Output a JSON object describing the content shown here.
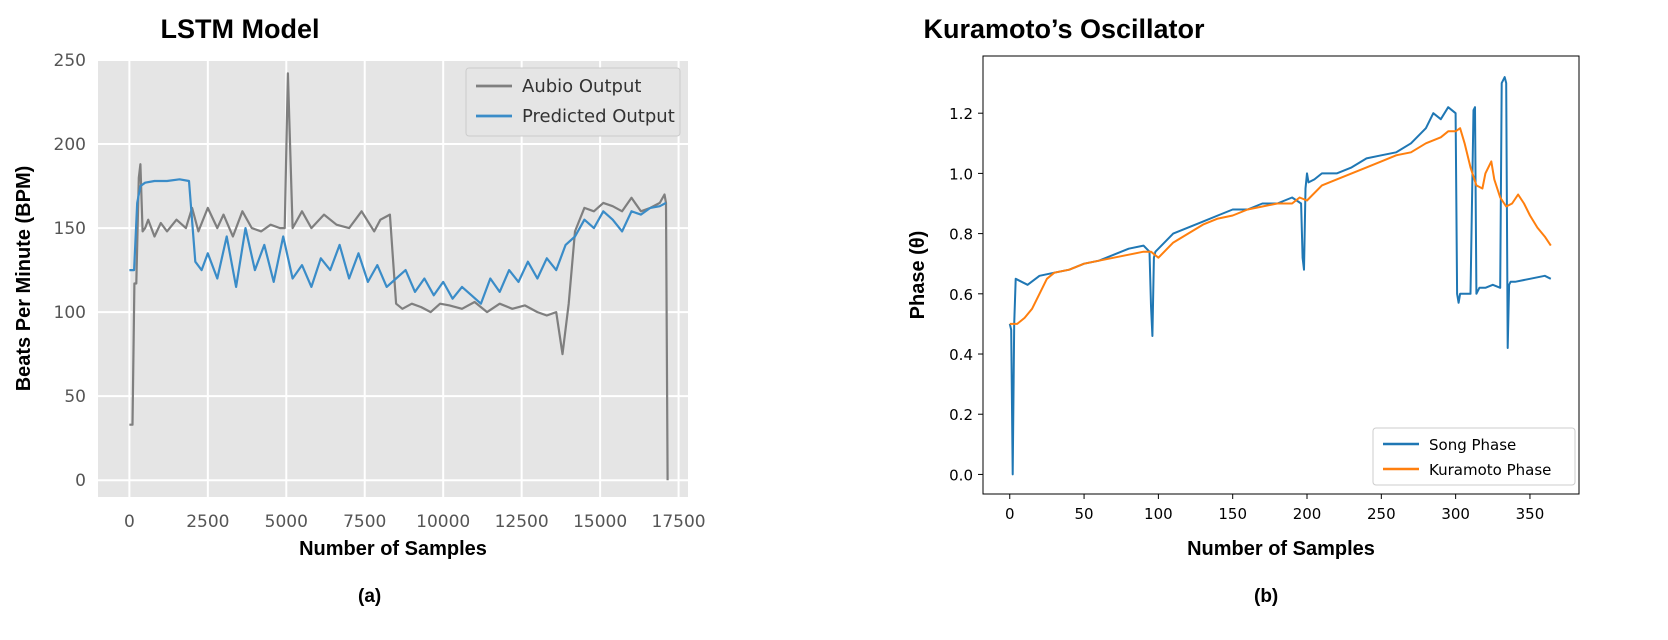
{
  "chart_data": [
    {
      "type": "line",
      "title": "LSTM Model",
      "xlabel": "Number of Samples",
      "ylabel": "Beats Per Minute (BPM)",
      "caption": "(a)",
      "xlim": [
        -1000,
        17800
      ],
      "ylim": [
        -10,
        250
      ],
      "xticks": [
        0,
        2500,
        5000,
        7500,
        10000,
        12500,
        15000,
        17500
      ],
      "yticks": [
        0,
        50,
        100,
        150,
        200,
        250
      ],
      "grid": true,
      "legend_position": "top-right",
      "colors": {
        "background": "#e5e5e5",
        "grid": "#ffffff",
        "series1": "#7f7f7f",
        "series2": "#3a8cc8"
      },
      "series": [
        {
          "name": "Aubio Output",
          "x": [
            0,
            100,
            160,
            220,
            300,
            350,
            420,
            500,
            600,
            800,
            1000,
            1200,
            1500,
            1800,
            2000,
            2200,
            2500,
            2800,
            3000,
            3300,
            3600,
            3900,
            4200,
            4500,
            4800,
            4950,
            5050,
            5200,
            5500,
            5800,
            6200,
            6600,
            7000,
            7400,
            7800,
            8000,
            8300,
            8500,
            8700,
            9000,
            9300,
            9600,
            9900,
            10200,
            10600,
            11000,
            11400,
            11800,
            12200,
            12600,
            13000,
            13300,
            13600,
            13800,
            14000,
            14200,
            14500,
            14800,
            15100,
            15400,
            15700,
            16000,
            16300,
            16600,
            16900,
            17050,
            17100,
            17150
          ],
          "values": [
            33,
            33,
            117,
            117,
            180,
            188,
            148,
            150,
            155,
            145,
            153,
            148,
            155,
            150,
            162,
            148,
            162,
            150,
            158,
            145,
            160,
            150,
            148,
            152,
            150,
            150,
            242,
            150,
            160,
            150,
            158,
            152,
            150,
            160,
            148,
            155,
            158,
            105,
            102,
            105,
            103,
            100,
            105,
            104,
            102,
            106,
            100,
            105,
            102,
            104,
            100,
            98,
            100,
            75,
            105,
            148,
            162,
            160,
            165,
            163,
            160,
            168,
            160,
            162,
            165,
            170,
            165,
            0
          ]
        },
        {
          "name": "Predicted Output",
          "x": [
            0,
            150,
            250,
            350,
            500,
            800,
            1200,
            1600,
            1900,
            2100,
            2300,
            2500,
            2800,
            3100,
            3400,
            3700,
            4000,
            4300,
            4600,
            4900,
            5200,
            5500,
            5800,
            6100,
            6400,
            6700,
            7000,
            7300,
            7600,
            7900,
            8200,
            8500,
            8800,
            9100,
            9400,
            9700,
            10000,
            10300,
            10600,
            10900,
            11200,
            11500,
            11800,
            12100,
            12400,
            12700,
            13000,
            13300,
            13600,
            13900,
            14200,
            14500,
            14800,
            15100,
            15400,
            15700,
            16000,
            16300,
            16600,
            16900,
            17100
          ],
          "values": [
            125,
            125,
            165,
            175,
            177,
            178,
            178,
            179,
            178,
            130,
            125,
            135,
            120,
            145,
            115,
            150,
            125,
            140,
            118,
            145,
            120,
            128,
            115,
            132,
            125,
            140,
            120,
            135,
            118,
            128,
            115,
            120,
            125,
            112,
            120,
            110,
            118,
            108,
            115,
            110,
            105,
            120,
            112,
            125,
            118,
            130,
            120,
            132,
            125,
            140,
            145,
            155,
            150,
            160,
            155,
            148,
            160,
            158,
            162,
            163,
            165
          ]
        }
      ]
    },
    {
      "type": "line",
      "title": "Kuramoto’s Oscillator",
      "xlabel": "Number of Samples",
      "ylabel": "Phase (θ)",
      "caption": "(b)",
      "xlim": [
        -18,
        383
      ],
      "ylim": [
        -0.065,
        1.39
      ],
      "xticks": [
        0,
        50,
        100,
        150,
        200,
        250,
        300,
        350
      ],
      "yticks": [
        0.0,
        0.2,
        0.4,
        0.6,
        0.8,
        1.0,
        1.2
      ],
      "grid": false,
      "legend_position": "bottom-right",
      "colors": {
        "background": "#ffffff",
        "series1": "#1f77b4",
        "series2": "#ff7f0e"
      },
      "series": [
        {
          "name": "Song Phase",
          "x": [
            0,
            1,
            2,
            3,
            4,
            8,
            12,
            20,
            30,
            40,
            50,
            60,
            70,
            80,
            90,
            94,
            95,
            96,
            97,
            98,
            100,
            110,
            120,
            130,
            140,
            150,
            160,
            170,
            180,
            190,
            196,
            197,
            198,
            199,
            200,
            201,
            205,
            210,
            220,
            230,
            240,
            250,
            260,
            270,
            280,
            285,
            290,
            295,
            300,
            301,
            302,
            303,
            305,
            310,
            312,
            313,
            314,
            316,
            318,
            320,
            325,
            330,
            331,
            332,
            333,
            334,
            335,
            336,
            337,
            338,
            340,
            350,
            360,
            364
          ],
          "values": [
            0.5,
            0.48,
            0.0,
            0.5,
            0.65,
            0.64,
            0.63,
            0.66,
            0.67,
            0.68,
            0.7,
            0.71,
            0.73,
            0.75,
            0.76,
            0.74,
            0.56,
            0.46,
            0.72,
            0.74,
            0.75,
            0.8,
            0.82,
            0.84,
            0.86,
            0.88,
            0.88,
            0.9,
            0.9,
            0.92,
            0.9,
            0.72,
            0.68,
            0.95,
            1.0,
            0.97,
            0.98,
            1.0,
            1.0,
            1.02,
            1.05,
            1.06,
            1.07,
            1.1,
            1.15,
            1.2,
            1.18,
            1.22,
            1.2,
            0.6,
            0.57,
            0.6,
            0.6,
            0.6,
            1.21,
            1.22,
            0.6,
            0.62,
            0.62,
            0.62,
            0.63,
            0.62,
            1.3,
            1.31,
            1.32,
            1.3,
            0.42,
            0.63,
            0.64,
            0.64,
            0.64,
            0.65,
            0.66,
            0.65
          ]
        },
        {
          "name": "Kuramoto Phase",
          "x": [
            0,
            5,
            10,
            15,
            20,
            25,
            30,
            40,
            50,
            60,
            70,
            80,
            90,
            95,
            100,
            110,
            120,
            130,
            140,
            150,
            160,
            170,
            180,
            190,
            195,
            200,
            210,
            220,
            230,
            240,
            250,
            260,
            270,
            280,
            290,
            295,
            300,
            303,
            306,
            310,
            314,
            318,
            320,
            324,
            326,
            330,
            334,
            338,
            342,
            346,
            350,
            355,
            360,
            364
          ],
          "values": [
            0.5,
            0.5,
            0.52,
            0.55,
            0.6,
            0.65,
            0.67,
            0.68,
            0.7,
            0.71,
            0.72,
            0.73,
            0.74,
            0.74,
            0.72,
            0.77,
            0.8,
            0.83,
            0.85,
            0.86,
            0.88,
            0.89,
            0.9,
            0.9,
            0.92,
            0.91,
            0.96,
            0.98,
            1.0,
            1.02,
            1.04,
            1.06,
            1.07,
            1.1,
            1.12,
            1.14,
            1.14,
            1.15,
            1.1,
            1.02,
            0.96,
            0.95,
            1.0,
            1.04,
            0.98,
            0.92,
            0.89,
            0.9,
            0.93,
            0.9,
            0.86,
            0.82,
            0.79,
            0.76
          ]
        }
      ]
    }
  ]
}
